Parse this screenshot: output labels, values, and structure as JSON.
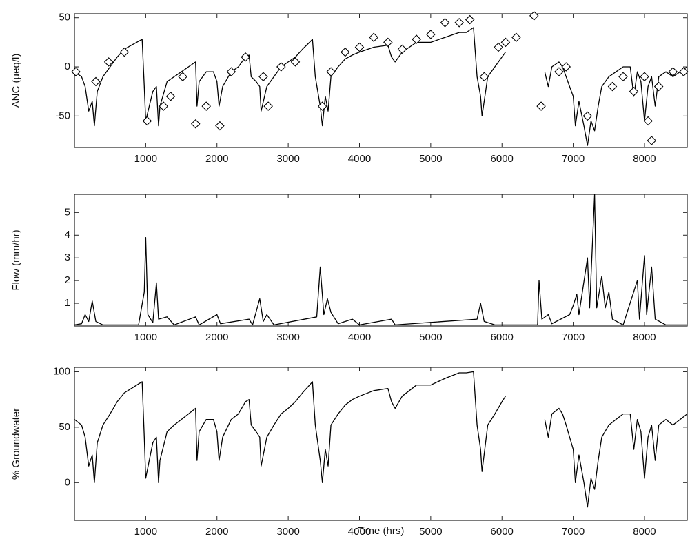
{
  "chart_data": [
    {
      "type": "line",
      "ylabel": "ANC (µeq/l)",
      "xlim": [
        0,
        8600
      ],
      "xticks": [
        1000,
        2000,
        3000,
        4000,
        5000,
        6000,
        7000,
        8000
      ],
      "ylim": [
        -82,
        54
      ],
      "yticks": [
        {
          "value": -50,
          "label": "-50"
        },
        0,
        50
      ],
      "x": [
        0,
        100,
        150,
        200,
        250,
        280,
        320,
        400,
        500,
        600,
        700,
        800,
        900,
        950,
        980,
        1000,
        1050,
        1100,
        1150,
        1180,
        1200,
        1300,
        1400,
        1500,
        1600,
        1700,
        1720,
        1750,
        1850,
        1950,
        2000,
        2030,
        2080,
        2200,
        2300,
        2400,
        2450,
        2480,
        2550,
        2600,
        2620,
        2700,
        2800,
        2900,
        3000,
        3100,
        3200,
        3300,
        3340,
        3380,
        3450,
        3480,
        3520,
        3560,
        3600,
        3700,
        3800,
        3900,
        4000,
        4200,
        4400,
        4450,
        4500,
        4600,
        4800,
        5000,
        5200,
        5400,
        5500,
        5600,
        5650,
        5700,
        5720,
        5800,
        5900,
        6000,
        6050,
        6300,
        6600,
        6650,
        6700,
        6800,
        6850,
        6900,
        6950,
        7000,
        7030,
        7080,
        7150,
        7200,
        7250,
        7300,
        7350,
        7400,
        7500,
        7600,
        7700,
        7800,
        7850,
        7900,
        7950,
        8000,
        8050,
        8100,
        8150,
        8200,
        8300,
        8400,
        8500,
        8600
      ],
      "series": [
        {
          "type": "line",
          "color": "#000000",
          "values": [
            -5,
            -10,
            -20,
            -45,
            -35,
            -60,
            -25,
            -10,
            0,
            10,
            18,
            22,
            26,
            28,
            -20,
            -55,
            -40,
            -25,
            -20,
            -60,
            -40,
            -15,
            -10,
            -5,
            0,
            5,
            -40,
            -15,
            -5,
            -5,
            -15,
            -40,
            -20,
            -5,
            0,
            10,
            12,
            -10,
            -15,
            -20,
            -45,
            -20,
            -10,
            0,
            5,
            10,
            18,
            25,
            28,
            -10,
            -40,
            -60,
            -30,
            -45,
            -10,
            0,
            8,
            12,
            15,
            20,
            22,
            10,
            5,
            15,
            25,
            25,
            30,
            35,
            35,
            40,
            -10,
            -30,
            -50,
            -10,
            0,
            10,
            15,
            null,
            -5,
            -20,
            0,
            5,
            0,
            -10,
            -20,
            -30,
            -60,
            -35,
            -60,
            -80,
            -55,
            -65,
            -40,
            -20,
            -10,
            -5,
            0,
            0,
            -30,
            -5,
            -15,
            -55,
            -20,
            -10,
            -40,
            -10,
            -5,
            -10,
            -5,
            0
          ]
        },
        {
          "type": "scatter",
          "marker": "diamond",
          "color": "#000000",
          "x": [
            20,
            300,
            480,
            700,
            1020,
            1250,
            1350,
            1520,
            1700,
            1850,
            2040,
            2200,
            2400,
            2650,
            2720,
            2900,
            3100,
            3480,
            3600,
            3800,
            4000,
            4200,
            4400,
            4600,
            4800,
            5000,
            5200,
            5400,
            5550,
            5750,
            5950,
            6050,
            6200,
            6450,
            6550,
            6800,
            6900,
            7200,
            7550,
            7700,
            7850,
            8000,
            8050,
            8100,
            8200,
            8400,
            8550
          ],
          "values": [
            -5,
            -15,
            5,
            15,
            -55,
            -40,
            -30,
            -10,
            -58,
            -40,
            -60,
            -5,
            10,
            -10,
            -40,
            0,
            5,
            -40,
            -5,
            15,
            20,
            30,
            25,
            18,
            28,
            33,
            45,
            45,
            48,
            -10,
            20,
            25,
            30,
            52,
            -40,
            -5,
            0,
            -50,
            -20,
            -10,
            -25,
            -10,
            -55,
            -75,
            -20,
            -5,
            -5
          ]
        }
      ]
    },
    {
      "type": "line",
      "ylabel": "Flow (mm/hr)",
      "xlim": [
        0,
        8600
      ],
      "xticks": [
        1000,
        2000,
        3000,
        4000,
        5000,
        6000,
        7000,
        8000
      ],
      "ylim": [
        0,
        5.8
      ],
      "yticks": [
        1,
        2,
        3,
        4,
        5
      ],
      "x": [
        0,
        100,
        150,
        200,
        250,
        300,
        400,
        900,
        980,
        1000,
        1030,
        1100,
        1150,
        1180,
        1300,
        1400,
        1700,
        1750,
        2000,
        2050,
        2450,
        2500,
        2600,
        2650,
        2700,
        2800,
        3400,
        3450,
        3500,
        3550,
        3600,
        3700,
        3900,
        4000,
        4450,
        4500,
        5650,
        5700,
        5750,
        5900,
        6500,
        6520,
        6560,
        6650,
        6700,
        6950,
        7000,
        7050,
        7080,
        7200,
        7230,
        7300,
        7330,
        7400,
        7450,
        7500,
        7550,
        7700,
        7900,
        7930,
        8000,
        8030,
        8100,
        8150,
        8300,
        8600
      ],
      "series": [
        {
          "type": "line",
          "color": "#000000",
          "values": [
            0.05,
            0.1,
            0.5,
            0.2,
            1.1,
            0.2,
            0.05,
            0.05,
            1.5,
            3.9,
            0.5,
            0.15,
            1.9,
            0.3,
            0.4,
            0.05,
            0.4,
            0.05,
            0.5,
            0.1,
            0.3,
            0.05,
            1.2,
            0.2,
            0.5,
            0.05,
            0.4,
            2.6,
            0.5,
            1.2,
            0.6,
            0.1,
            0.3,
            0.05,
            0.3,
            0.05,
            0.3,
            1.0,
            0.2,
            0.05,
            0.05,
            2.0,
            0.3,
            0.5,
            0.1,
            0.5,
            0.9,
            1.4,
            0.5,
            3.0,
            0.8,
            5.8,
            0.8,
            2.2,
            0.8,
            1.5,
            0.3,
            0.05,
            2.0,
            0.3,
            3.1,
            0.5,
            2.6,
            0.3,
            0.05,
            0.05
          ]
        }
      ]
    },
    {
      "type": "line",
      "ylabel": "% Groundwater",
      "xlabel": "Time (hrs)",
      "xlim": [
        0,
        8600
      ],
      "xticks": [
        1000,
        2000,
        3000,
        4000,
        5000,
        6000,
        7000,
        8000
      ],
      "ylim": [
        -34,
        104
      ],
      "yticks": [
        0,
        50,
        100
      ],
      "x": [
        0,
        100,
        150,
        200,
        250,
        280,
        320,
        400,
        500,
        600,
        700,
        800,
        900,
        950,
        980,
        1000,
        1050,
        1100,
        1150,
        1180,
        1200,
        1300,
        1400,
        1500,
        1600,
        1700,
        1720,
        1750,
        1850,
        1950,
        2000,
        2030,
        2080,
        2200,
        2300,
        2400,
        2450,
        2480,
        2550,
        2600,
        2620,
        2700,
        2800,
        2900,
        3000,
        3100,
        3200,
        3300,
        3340,
        3380,
        3450,
        3480,
        3520,
        3560,
        3600,
        3700,
        3800,
        3900,
        4000,
        4200,
        4400,
        4450,
        4500,
        4600,
        4800,
        5000,
        5200,
        5400,
        5500,
        5600,
        5650,
        5700,
        5720,
        5800,
        5900,
        6000,
        6050,
        6300,
        6600,
        6650,
        6700,
        6800,
        6850,
        6900,
        6950,
        7000,
        7030,
        7080,
        7150,
        7200,
        7250,
        7300,
        7350,
        7400,
        7500,
        7600,
        7700,
        7800,
        7850,
        7900,
        7950,
        8000,
        8050,
        8100,
        8150,
        8200,
        8300,
        8400,
        8500,
        8600
      ],
      "series": [
        {
          "type": "line",
          "color": "#000000",
          "values": [
            57,
            52,
            41,
            15,
            25,
            0,
            36,
            52,
            62,
            73,
            81,
            85,
            89,
            91,
            41,
            4,
            20,
            36,
            41,
            0,
            20,
            46,
            52,
            57,
            62,
            67,
            20,
            46,
            57,
            57,
            46,
            20,
            41,
            57,
            62,
            73,
            75,
            52,
            46,
            41,
            15,
            41,
            52,
            62,
            67,
            73,
            81,
            88,
            91,
            52,
            20,
            0,
            30,
            15,
            52,
            62,
            70,
            75,
            78,
            83,
            85,
            73,
            67,
            78,
            88,
            88,
            94,
            99,
            99,
            100,
            52,
            30,
            10,
            52,
            62,
            73,
            78,
            null,
            57,
            41,
            62,
            67,
            62,
            52,
            41,
            30,
            0,
            25,
            0,
            -22,
            4,
            -6,
            20,
            41,
            52,
            57,
            62,
            62,
            30,
            57,
            46,
            4,
            41,
            52,
            20,
            52,
            57,
            52,
            57,
            62
          ]
        }
      ]
    }
  ]
}
